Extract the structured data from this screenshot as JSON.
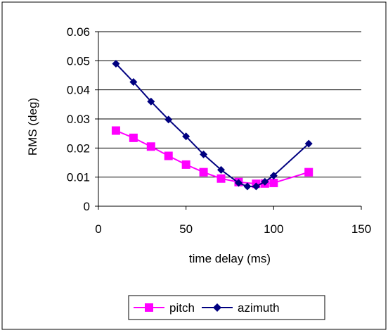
{
  "chart_data": {
    "type": "line",
    "xlabel": "time delay (ms)",
    "ylabel": "RMS (deg)",
    "xlim": [
      0,
      150
    ],
    "ylim": [
      0,
      0.06
    ],
    "x_ticks": [
      "0",
      "50",
      "100",
      "150"
    ],
    "y_ticks": [
      "0",
      "0.01",
      "0.02",
      "0.03",
      "0.04",
      "0.05",
      "0.06"
    ],
    "x_tick_values": [
      0,
      50,
      100,
      150
    ],
    "y_tick_values": [
      0,
      0.01,
      0.02,
      0.03,
      0.04,
      0.05,
      0.06
    ],
    "grid": "horizontal",
    "legend_position": "bottom",
    "series": [
      {
        "name": "pitch",
        "color": "#ff00ff",
        "marker": "square",
        "x": [
          10,
          20,
          30,
          40,
          50,
          60,
          70,
          80,
          90,
          95,
          100,
          120
        ],
        "y": [
          0.026,
          0.0235,
          0.0205,
          0.0173,
          0.0143,
          0.0117,
          0.0095,
          0.0083,
          0.0077,
          0.0078,
          0.008,
          0.0117
        ]
      },
      {
        "name": "azimuth",
        "color": "#000080",
        "marker": "diamond",
        "x": [
          10,
          20,
          30,
          40,
          50,
          60,
          70,
          80,
          85,
          90,
          95,
          100,
          120
        ],
        "y": [
          0.049,
          0.0427,
          0.036,
          0.0298,
          0.024,
          0.0178,
          0.0125,
          0.008,
          0.0068,
          0.0068,
          0.0084,
          0.0105,
          0.0215
        ]
      }
    ]
  }
}
